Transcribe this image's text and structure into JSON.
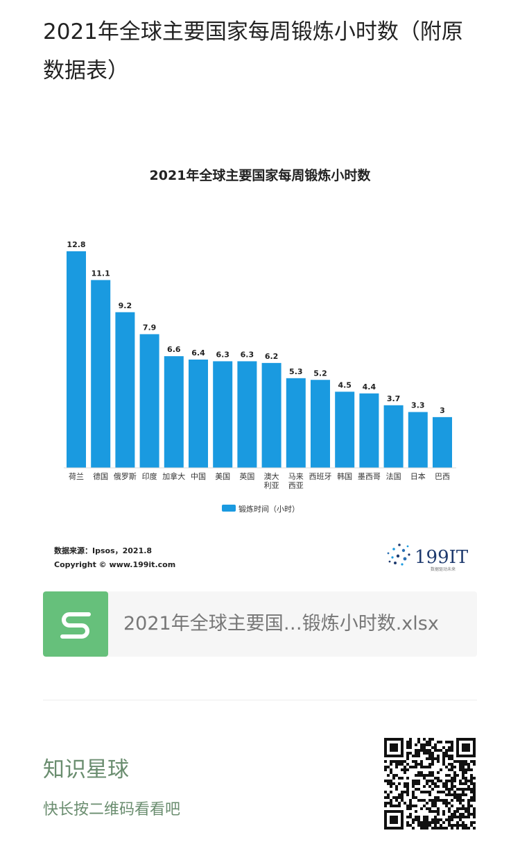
{
  "post": {
    "title": "2021年全球主要国家每周锻炼小时数（附原数据表）"
  },
  "chart_data": {
    "type": "bar",
    "title": "2021年全球主要国家每周锻炼小时数",
    "categories": [
      "荷兰",
      "德国",
      "俄罗斯",
      "印度",
      "加拿大",
      "中国",
      "美国",
      "英国",
      "澳大利亚",
      "马来西亚",
      "西班牙",
      "韩国",
      "墨西哥",
      "法国",
      "日本",
      "巴西"
    ],
    "category_lines": [
      [
        "荷兰"
      ],
      [
        "德国"
      ],
      [
        "俄罗斯"
      ],
      [
        "印度"
      ],
      [
        "加拿大"
      ],
      [
        "中国"
      ],
      [
        "美国"
      ],
      [
        "英国"
      ],
      [
        "澳大",
        "利亚"
      ],
      [
        "马来",
        "西亚"
      ],
      [
        "西班牙"
      ],
      [
        "韩国"
      ],
      [
        "墨西哥"
      ],
      [
        "法国"
      ],
      [
        "日本"
      ],
      [
        "巴西"
      ]
    ],
    "series": [
      {
        "name": "锻炼时间（小时）",
        "values": [
          12.8,
          11.1,
          9.2,
          7.9,
          6.6,
          6.4,
          6.3,
          6.3,
          6.2,
          5.3,
          5.2,
          4.5,
          4.4,
          3.7,
          3.3,
          3
        ]
      }
    ],
    "data_labels": [
      "12.8",
      "11.1",
      "9.2",
      "7.9",
      "6.6",
      "6.4",
      "6.3",
      "6.3",
      "6.2",
      "5.3",
      "5.2",
      "4.5",
      "4.4",
      "3.7",
      "3.3",
      "3"
    ],
    "ylim": [
      0,
      12.8
    ],
    "grid": false,
    "legend_position": "bottom",
    "bar_color": "#1a9ae0",
    "source_line": "数据来源：Ipsos，2021.8",
    "copyright_line": "Copyright © www.199it.com",
    "brand": {
      "name": "199IT",
      "tagline": "数据驱动未来",
      "color": "#1e3a6e"
    }
  },
  "file_card": {
    "name": "2021年全球主要国…锻炼小时数.xlsx",
    "icon": "spreadsheet-s-icon",
    "icon_color": "#66c07b"
  },
  "planet": {
    "title": "知识星球",
    "subtitle": "快长按二维码看看吧",
    "qr_icon": "qr-code-icon"
  }
}
